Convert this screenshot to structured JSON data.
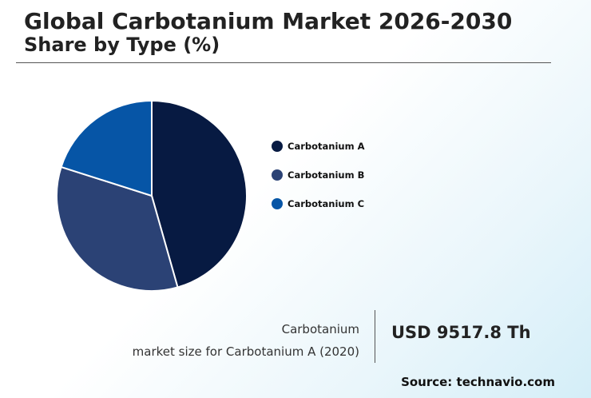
{
  "header": {
    "title": "Global Carbotanium Market 2026-2030",
    "subtitle": "Share by Type (%)"
  },
  "chart_data": {
    "type": "pie",
    "categories": [
      "Carbotanium A",
      "Carbotanium B",
      "Carbotanium C"
    ],
    "values": [
      45.6,
      34.3,
      20.1
    ],
    "colors": [
      "#071a42",
      "#2b4275",
      "#0655a6"
    ],
    "legend_position": "right"
  },
  "footer": {
    "caption_line1": "Carbotanium",
    "caption_line2": "market size for Carbotanium A (2020)",
    "value": "USD 9517.8 Th",
    "source": "Source: technavio.com"
  }
}
